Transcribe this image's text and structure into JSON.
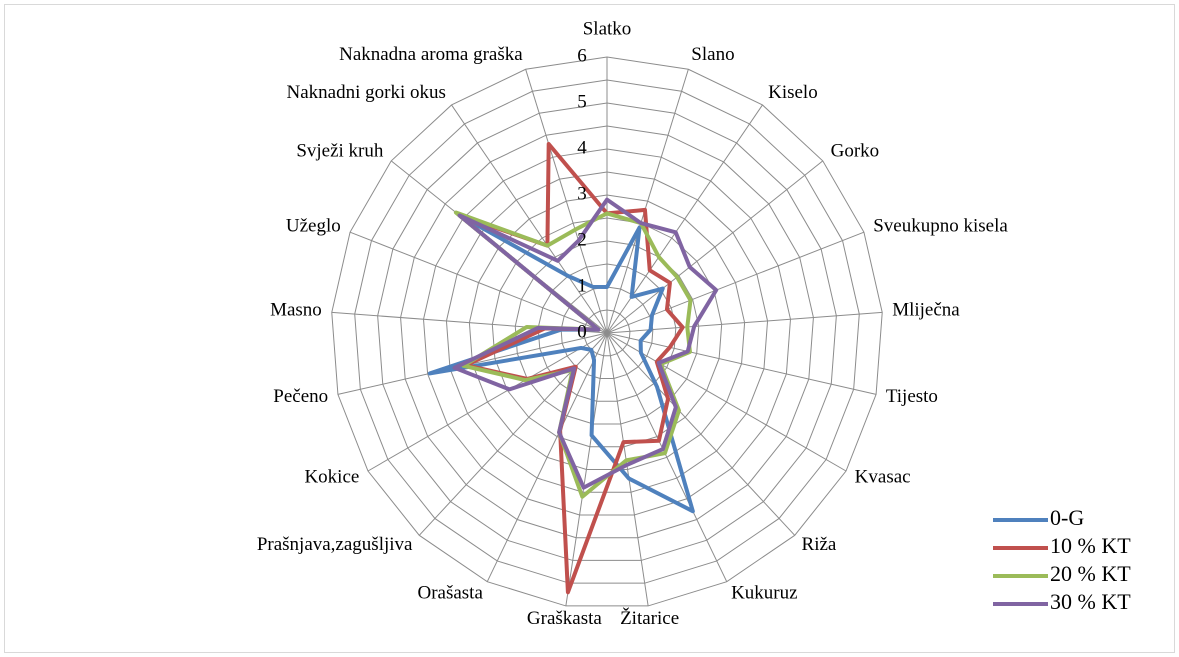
{
  "chart_data": {
    "type": "radar",
    "categories": [
      "Slatko",
      "Slano",
      "Kiselo",
      "Gorko",
      "Sveukupno kisela",
      "Mliječna",
      "Tijesto",
      "Kvasac",
      "Riža",
      "Kukuruz",
      "Žitarice",
      "Graškasta",
      "Orašasta",
      "Prašnjava,zagušljiva",
      "Kokice",
      "Pečeno",
      "Masno",
      "Užeglo",
      "Svježi kruh",
      "Naknadni gorki okus",
      "Naknadna aroma graška"
    ],
    "series": [
      {
        "name": "0-G",
        "color": "#4f81bd",
        "values": [
          1.0,
          2.4,
          0.95,
          1.55,
          1.05,
          0.95,
          0.75,
          0.85,
          1.6,
          4.3,
          3.2,
          2.25,
          0.65,
          0.5,
          0.65,
          3.95,
          1.0,
          0.2,
          4.1,
          1.5,
          1.05
        ]
      },
      {
        "name": "10 % KT",
        "color": "#c0504d",
        "values": [
          2.6,
          2.8,
          1.65,
          1.75,
          1.4,
          1.65,
          1.4,
          1.25,
          1.95,
          2.6,
          2.4,
          5.7,
          2.35,
          1.0,
          2.0,
          3.15,
          1.35,
          0.2,
          4.1,
          2.3,
          4.3
        ]
      },
      {
        "name": "20 % KT",
        "color": "#9bbb59",
        "values": [
          2.6,
          2.5,
          2.0,
          1.95,
          1.95,
          1.75,
          1.85,
          1.35,
          2.3,
          2.9,
          2.8,
          3.6,
          2.4,
          1.1,
          2.05,
          3.2,
          1.75,
          0.2,
          4.2,
          2.3,
          2.35
        ]
      },
      {
        "name": "30 % KT",
        "color": "#8064a2",
        "values": [
          2.9,
          2.5,
          2.65,
          2.3,
          2.55,
          1.9,
          1.8,
          1.3,
          2.2,
          2.8,
          2.9,
          3.4,
          2.4,
          1.05,
          2.45,
          3.4,
          1.5,
          0.2,
          4.1,
          1.9,
          2.1
        ]
      }
    ],
    "ylim": [
      0,
      6
    ],
    "yticks": [
      0,
      1,
      2,
      3,
      4,
      5,
      6
    ],
    "grid": true,
    "legend": "bottom-right"
  }
}
